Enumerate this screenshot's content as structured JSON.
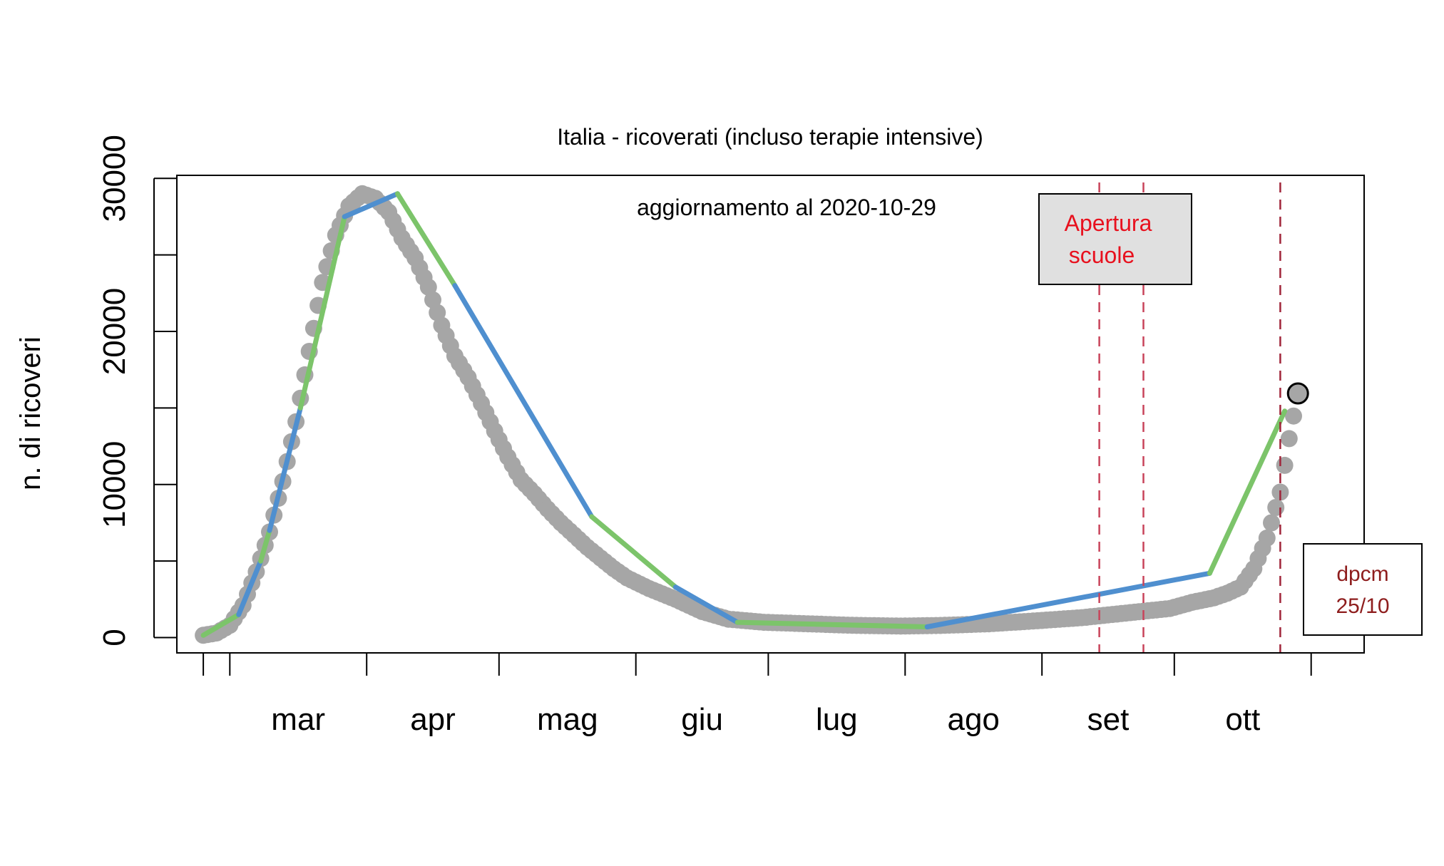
{
  "chart_data": {
    "type": "line",
    "title": "Italia - ricoverati (incluso terapie intensive)",
    "subtitle": "aggiornamento al 2020-10-29",
    "xlabel": "",
    "ylabel": "n. di ricoveri",
    "ylim": [
      -1000,
      30200
    ],
    "xlim": [
      "2020-02-18",
      "2020-11-13"
    ],
    "x_tick_labels": [
      "mar",
      "apr",
      "mag",
      "giu",
      "lug",
      "ago",
      "set",
      "ott"
    ],
    "x_tick_dates": [
      "2020-02-24",
      "2020-03-01",
      "2020-04-01",
      "2020-05-01",
      "2020-06-01",
      "2020-07-01",
      "2020-08-01",
      "2020-09-01",
      "2020-10-01",
      "2020-11-01"
    ],
    "y_ticks": [
      0,
      5000,
      10000,
      15000,
      20000,
      25000,
      30000
    ],
    "y_tick_labels": [
      "0",
      "10000",
      "20000",
      "30000"
    ],
    "grid": false,
    "colors": {
      "observed_points": "#a6a6a6",
      "segment_blue": "#4f8fcf",
      "segment_green": "#7cc46a",
      "event_line": "#c8435a",
      "dpcm_line": "#a0253a",
      "annotation_red": "#e8111e",
      "annotation_darkred": "#8e1d1d",
      "box_fill": "#e0e0e0"
    },
    "series": [
      {
        "name": "",
        "x": [
          "2020-02-24",
          "2020-02-27",
          "2020-03-01",
          "2020-03-04",
          "2020-03-07",
          "2020-03-10",
          "2020-03-13",
          "2020-03-16",
          "2020-03-19",
          "2020-03-22",
          "2020-03-25",
          "2020-03-28",
          "2020-03-31",
          "2020-04-03",
          "2020-04-06",
          "2020-04-09",
          "2020-04-12",
          "2020-04-15",
          "2020-04-18",
          "2020-04-21",
          "2020-04-24",
          "2020-04-27",
          "2020-04-30",
          "2020-05-03",
          "2020-05-06",
          "2020-05-09",
          "2020-05-12",
          "2020-05-15",
          "2020-05-18",
          "2020-05-21",
          "2020-05-24",
          "2020-05-27",
          "2020-05-30",
          "2020-06-04",
          "2020-06-10",
          "2020-06-16",
          "2020-06-22",
          "2020-06-30",
          "2020-07-10",
          "2020-07-20",
          "2020-07-31",
          "2020-08-10",
          "2020-08-20",
          "2020-08-31",
          "2020-09-10",
          "2020-09-20",
          "2020-09-30",
          "2020-10-05",
          "2020-10-10",
          "2020-10-13",
          "2020-10-16",
          "2020-10-19",
          "2020-10-22",
          "2020-10-25",
          "2020-10-27",
          "2020-10-29"
        ],
        "values": [
          150,
          300,
          800,
          2100,
          4300,
          6900,
          10200,
          14100,
          18700,
          23200,
          26300,
          28200,
          29000,
          28700,
          27800,
          26100,
          24800,
          22900,
          20400,
          18400,
          17000,
          15300,
          13500,
          11800,
          10300,
          9400,
          8400,
          7500,
          6700,
          5900,
          5200,
          4500,
          3900,
          3200,
          2500,
          1700,
          1200,
          1000,
          900,
          800,
          750,
          800,
          900,
          1100,
          1300,
          1600,
          1900,
          2300,
          2600,
          2900,
          3300,
          4500,
          6500,
          9500,
          13000,
          15950
        ]
      }
    ],
    "fit_segments": [
      {
        "color": "green",
        "x": [
          "2020-02-24",
          "2020-03-03"
        ],
        "values": [
          150,
          1500
        ]
      },
      {
        "color": "blue",
        "x": [
          "2020-03-03",
          "2020-03-08"
        ],
        "values": [
          1500,
          5000
        ]
      },
      {
        "color": "green",
        "x": [
          "2020-03-08",
          "2020-03-10"
        ],
        "values": [
          5000,
          7000
        ]
      },
      {
        "color": "blue",
        "x": [
          "2020-03-10",
          "2020-03-17"
        ],
        "values": [
          7000,
          15000
        ]
      },
      {
        "color": "green",
        "x": [
          "2020-03-17",
          "2020-03-27"
        ],
        "values": [
          15000,
          27500
        ]
      },
      {
        "color": "blue",
        "x": [
          "2020-03-27",
          "2020-04-08"
        ],
        "values": [
          27500,
          29000
        ]
      },
      {
        "color": "green",
        "x": [
          "2020-04-08",
          "2020-04-21"
        ],
        "values": [
          29000,
          23000
        ]
      },
      {
        "color": "blue",
        "x": [
          "2020-04-21",
          "2020-05-22"
        ],
        "values": [
          23000,
          7900
        ]
      },
      {
        "color": "green",
        "x": [
          "2020-05-22",
          "2020-06-10"
        ],
        "values": [
          7900,
          3300
        ]
      },
      {
        "color": "blue",
        "x": [
          "2020-06-10",
          "2020-06-24"
        ],
        "values": [
          3300,
          1000
        ]
      },
      {
        "color": "green",
        "x": [
          "2020-06-24",
          "2020-08-06"
        ],
        "values": [
          1000,
          700
        ]
      },
      {
        "color": "blue",
        "x": [
          "2020-08-06",
          "2020-10-09"
        ],
        "values": [
          700,
          4200
        ]
      },
      {
        "color": "green",
        "x": [
          "2020-10-09",
          "2020-10-26"
        ],
        "values": [
          4200,
          14800
        ]
      }
    ],
    "last_point": {
      "x": "2020-10-29",
      "value": 15950
    },
    "event_lines": [
      {
        "x": "2020-09-14",
        "style": "dashed",
        "color": "event_line"
      },
      {
        "x": "2020-09-24",
        "style": "dashed",
        "color": "event_line"
      },
      {
        "x": "2020-10-25",
        "style": "dashed",
        "color": "dpcm_line"
      }
    ],
    "annotations": {
      "schools": {
        "line1": "Apertura",
        "line2": "scuole"
      },
      "dpcm": {
        "line1": "dpcm",
        "line2": "25/10"
      }
    }
  }
}
